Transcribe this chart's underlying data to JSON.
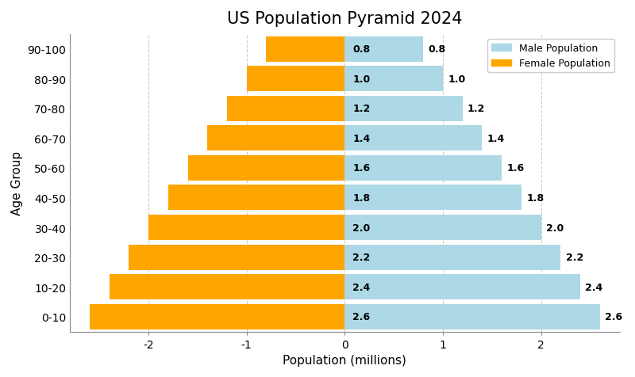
{
  "title": "US Population Pyramid 2024",
  "xlabel": "Population (millions)",
  "ylabel": "Age Group",
  "age_groups": [
    "0-10",
    "10-20",
    "20-30",
    "30-40",
    "40-50",
    "50-60",
    "60-70",
    "70-80",
    "80-90",
    "90-100"
  ],
  "male_values": [
    2.6,
    2.4,
    2.2,
    2.0,
    1.8,
    1.6,
    1.4,
    1.2,
    1.0,
    0.8
  ],
  "female_values": [
    2.6,
    2.4,
    2.2,
    2.0,
    1.8,
    1.6,
    1.4,
    1.2,
    1.0,
    0.8
  ],
  "male_color": "#ADD8E6",
  "female_color": "#FFA500",
  "background_color": "#ffffff",
  "xlim": [
    -2.8,
    2.8
  ],
  "xticks": [
    -2,
    -1,
    0,
    1,
    2
  ],
  "title_fontsize": 15,
  "axis_label_fontsize": 11,
  "tick_fontsize": 10,
  "bar_label_fontsize": 9,
  "legend_labels": [
    "Male Population",
    "Female Population"
  ],
  "grid_color": "#aaaaaa",
  "grid_linestyle": "--",
  "grid_alpha": 0.6,
  "bar_height": 0.85
}
